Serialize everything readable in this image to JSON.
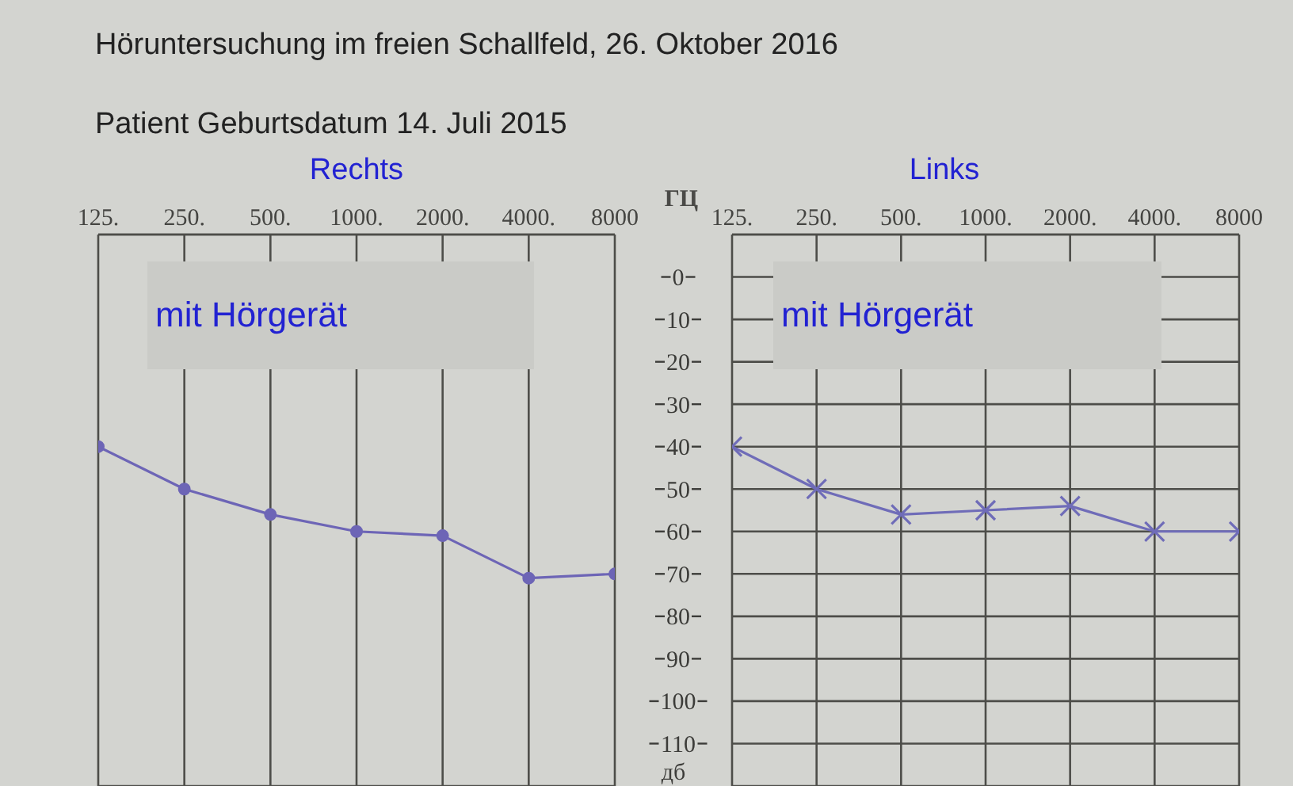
{
  "chart_data": [
    {
      "type": "line",
      "title": "Rechts",
      "subtitle": "mit Hörgerät",
      "annotations": [
        "Höruntersuchung im freien Schallfeld, 26. Oktober 2016",
        "Patient Geburtsdatum 14. Juli 2015"
      ],
      "categories": [
        "125.",
        "250.",
        "500.",
        "1000.",
        "2000.",
        "4000.",
        "8000"
      ],
      "series": [
        {
          "color": "#6d65b6",
          "values": [
            40,
            50,
            56,
            60,
            61,
            71,
            70
          ]
        }
      ],
      "ylim": [
        120,
        -10
      ],
      "yticks": [
        0,
        10,
        20,
        30,
        40,
        50,
        60,
        70,
        80,
        90,
        100,
        110
      ],
      "grid": true,
      "marker": "circle",
      "tick_labels": "x"
    },
    {
      "type": "line",
      "title": "Links",
      "subtitle": "mit Hörgerät",
      "xlabel": "ГЦ",
      "ylabel": "дб",
      "categories": [
        "125.",
        "250.",
        "500.",
        "1000.",
        "2000.",
        "4000.",
        "8000"
      ],
      "series": [
        {
          "color": "#6f6cb8",
          "values": [
            40,
            50,
            56,
            55,
            54,
            60,
            60
          ]
        }
      ],
      "ylim": [
        120,
        -10
      ],
      "yticks": [
        0,
        10,
        20,
        30,
        40,
        50,
        60,
        70,
        80,
        90,
        100,
        110
      ],
      "grid": true,
      "marker": "cross"
    }
  ]
}
